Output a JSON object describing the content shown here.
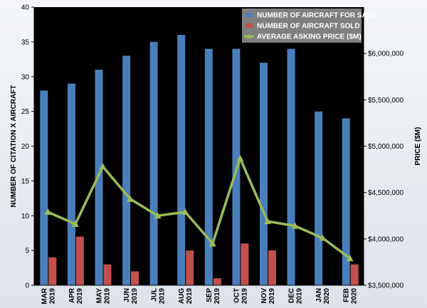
{
  "chart_data": {
    "type": "bar",
    "categories": [
      [
        "MAR",
        "2019"
      ],
      [
        "APR",
        "2019"
      ],
      [
        "MAY",
        "2019"
      ],
      [
        "JUN",
        "2019"
      ],
      [
        "JUL",
        "2019"
      ],
      [
        "AUG",
        "2019"
      ],
      [
        "SEP",
        "2019"
      ],
      [
        "OCT",
        "2019"
      ],
      [
        "NOV",
        "2019"
      ],
      [
        "DEC",
        "2019"
      ],
      [
        "JAN",
        "2020"
      ],
      [
        "FEB",
        "2020"
      ]
    ],
    "series": [
      {
        "name": "NUMBER OF AIRCRAFT FOR SALE",
        "type": "bar",
        "axis": "left",
        "color": "#4a7ebb",
        "values": [
          28,
          29,
          31,
          33,
          35,
          36,
          34,
          34,
          32,
          34,
          25,
          24
        ]
      },
      {
        "name": "NUMBER OF AIRCRAFT SOLD",
        "type": "bar",
        "axis": "left",
        "color": "#c0504d",
        "values": [
          4,
          7,
          3,
          2,
          0,
          5,
          1,
          6,
          5,
          0,
          0,
          3
        ]
      },
      {
        "name": "AVERAGE ASKING PRICE ($M)",
        "type": "line",
        "axis": "right",
        "color": "#9bbb59",
        "values": [
          4290000,
          4160000,
          4780000,
          4430000,
          4250000,
          4290000,
          3950000,
          4870000,
          4190000,
          4140000,
          4010000,
          3790000
        ]
      }
    ],
    "ylabel": "NUMBER OF CITATION X AIRCRAFT",
    "y2label": "PRICE ($M)",
    "ylim": [
      0,
      40
    ],
    "yticks": [
      "0",
      "5",
      "10",
      "15",
      "20",
      "25",
      "30",
      "35",
      "40"
    ],
    "y2lim": [
      3500000,
      6500000
    ],
    "y2ticks": [
      "$3,500,000",
      "$4,000,000",
      "$4,500,000",
      "$5,000,000",
      "$5,500,000",
      "$6,000,000"
    ],
    "y2tick_values": [
      3500000,
      4000000,
      4500000,
      5000000,
      5500000,
      6000000
    ],
    "plot_background": "#000000",
    "legend_position": "top-right",
    "grid": false
  }
}
